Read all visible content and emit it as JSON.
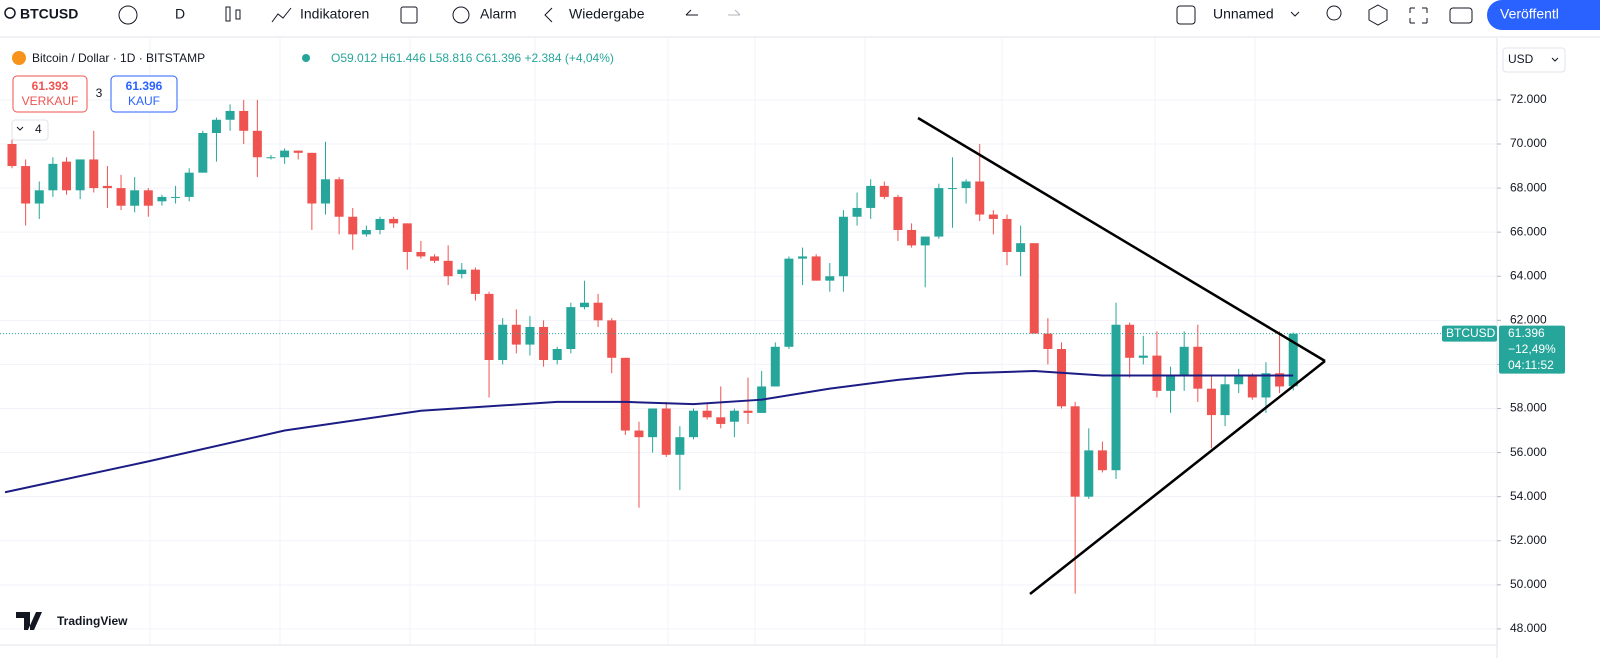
{
  "toolbar": {
    "symbol": "BTCUSD",
    "interval": "D",
    "indicators": "Indikatoren",
    "alert": "Alarm",
    "replay": "Wiedergabe",
    "layout": "Unnamed",
    "publish": "Veröffentl"
  },
  "legend": {
    "title": "Bitcoin / Dollar · 1D · BITSTAMP",
    "ohlc": "O59.012 H61.446 L58.816 C61.396 +2.384 (+4,04%)",
    "sell_price": "61.393",
    "sell": "VERKAUF",
    "spread": "3",
    "buy_price": "61.396",
    "buy": "KAUF",
    "indicator_count": "4"
  },
  "price_axis": {
    "currency": "USD",
    "symbol": "BTCUSD",
    "last": "61.396",
    "change": "−12,49%",
    "countdown": "04:11:52"
  },
  "brand": "TradingView",
  "chart_data": {
    "type": "candlestick",
    "up_color": "#26a69a",
    "down_color": "#ef5350",
    "candles": [
      [
        70.0,
        70.2,
        68.9,
        69.0
      ],
      [
        69.0,
        69.3,
        66.3,
        67.3
      ],
      [
        67.3,
        68.3,
        66.6,
        67.9
      ],
      [
        67.9,
        69.4,
        67.6,
        69.1
      ],
      [
        69.2,
        69.4,
        67.7,
        67.9
      ],
      [
        67.9,
        69.3,
        67.5,
        69.3
      ],
      [
        69.3,
        70.6,
        67.8,
        68.0
      ],
      [
        68.1,
        69.0,
        67.1,
        68.0
      ],
      [
        68.0,
        68.6,
        67.0,
        67.2
      ],
      [
        67.2,
        68.5,
        66.9,
        67.9
      ],
      [
        67.9,
        68.0,
        66.7,
        67.2
      ],
      [
        67.4,
        67.7,
        67.2,
        67.6
      ],
      [
        67.6,
        68.1,
        67.3,
        67.6
      ],
      [
        67.6,
        68.9,
        67.4,
        68.7
      ],
      [
        68.7,
        70.6,
        68.7,
        70.5
      ],
      [
        70.5,
        71.2,
        69.2,
        71.1
      ],
      [
        71.1,
        71.8,
        70.6,
        71.5
      ],
      [
        71.5,
        72.0,
        70.0,
        70.6
      ],
      [
        70.6,
        72.0,
        68.5,
        69.4
      ],
      [
        69.4,
        69.5,
        69.3,
        69.4
      ],
      [
        69.4,
        69.8,
        69.1,
        69.7
      ],
      [
        69.7,
        69.7,
        69.3,
        69.6
      ],
      [
        69.6,
        69.6,
        66.1,
        67.3
      ],
      [
        67.3,
        70.1,
        66.8,
        68.4
      ],
      [
        68.4,
        68.5,
        65.9,
        66.7
      ],
      [
        66.7,
        67.1,
        65.2,
        65.9
      ],
      [
        65.9,
        66.3,
        65.8,
        66.1
      ],
      [
        66.1,
        66.7,
        65.9,
        66.6
      ],
      [
        66.6,
        66.7,
        66.2,
        66.4
      ],
      [
        66.4,
        66.4,
        64.3,
        65.1
      ],
      [
        65.1,
        65.6,
        64.8,
        64.9
      ],
      [
        64.9,
        65.0,
        64.6,
        64.7
      ],
      [
        64.7,
        65.4,
        63.6,
        64.0
      ],
      [
        64.1,
        64.6,
        63.9,
        64.3
      ],
      [
        64.3,
        64.4,
        62.9,
        63.2
      ],
      [
        63.2,
        63.3,
        58.5,
        60.2
      ],
      [
        60.2,
        62.1,
        60.0,
        61.8
      ],
      [
        61.8,
        62.5,
        60.5,
        60.9
      ],
      [
        60.9,
        62.2,
        60.4,
        61.7
      ],
      [
        61.7,
        62.0,
        59.9,
        60.2
      ],
      [
        60.2,
        60.8,
        60.0,
        60.7
      ],
      [
        60.7,
        62.8,
        60.5,
        62.6
      ],
      [
        62.6,
        63.8,
        62.5,
        62.8
      ],
      [
        62.8,
        63.2,
        61.7,
        62.0
      ],
      [
        62.0,
        62.1,
        59.6,
        60.3
      ],
      [
        60.3,
        60.3,
        56.8,
        57.0
      ],
      [
        57.0,
        57.4,
        53.5,
        56.7
      ],
      [
        56.7,
        58.0,
        56.0,
        58.0
      ],
      [
        58.0,
        58.3,
        55.8,
        55.9
      ],
      [
        55.9,
        57.2,
        54.3,
        56.7
      ],
      [
        56.7,
        58.0,
        56.6,
        57.9
      ],
      [
        57.9,
        58.2,
        57.5,
        57.6
      ],
      [
        57.6,
        59.0,
        57.1,
        57.3
      ],
      [
        57.4,
        58.0,
        56.7,
        57.9
      ],
      [
        57.9,
        59.4,
        57.3,
        57.8
      ],
      [
        57.8,
        59.7,
        57.8,
        59.0
      ],
      [
        59.0,
        61.0,
        59.0,
        60.8
      ],
      [
        60.8,
        64.9,
        60.7,
        64.8
      ],
      [
        64.8,
        65.3,
        63.6,
        64.9
      ],
      [
        64.9,
        65.0,
        63.8,
        63.8
      ],
      [
        63.8,
        64.6,
        63.3,
        64.0
      ],
      [
        64.0,
        67.0,
        63.3,
        66.7
      ],
      [
        66.7,
        67.8,
        66.3,
        67.1
      ],
      [
        67.1,
        68.4,
        66.6,
        68.1
      ],
      [
        68.1,
        68.3,
        67.5,
        67.6
      ],
      [
        67.6,
        67.7,
        65.6,
        66.1
      ],
      [
        66.1,
        66.4,
        65.3,
        65.4
      ],
      [
        65.4,
        65.8,
        63.5,
        65.8
      ],
      [
        65.8,
        68.2,
        65.7,
        68.0
      ],
      [
        68.0,
        69.4,
        66.2,
        68.0
      ],
      [
        68.0,
        68.4,
        67.3,
        68.3
      ],
      [
        68.3,
        70.0,
        66.5,
        66.8
      ],
      [
        66.8,
        67.0,
        65.9,
        66.6
      ],
      [
        66.6,
        66.8,
        64.5,
        65.1
      ],
      [
        65.1,
        66.3,
        64.0,
        65.5
      ],
      [
        65.5,
        65.5,
        61.4,
        61.4
      ],
      [
        61.4,
        62.1,
        60.0,
        60.7
      ],
      [
        60.7,
        61.0,
        58.0,
        58.1
      ],
      [
        58.1,
        58.3,
        49.6,
        54.0
      ],
      [
        54.0,
        57.1,
        53.9,
        56.1
      ],
      [
        56.1,
        56.5,
        55.1,
        55.2
      ],
      [
        55.2,
        62.8,
        54.8,
        61.8
      ],
      [
        61.8,
        61.9,
        59.4,
        60.3
      ],
      [
        60.3,
        61.3,
        60.0,
        60.4
      ],
      [
        60.4,
        61.5,
        58.5,
        58.8
      ],
      [
        58.8,
        59.9,
        57.8,
        59.5
      ],
      [
        59.5,
        61.5,
        58.8,
        60.8
      ],
      [
        60.8,
        61.8,
        58.3,
        58.9
      ],
      [
        58.9,
        59.5,
        56.2,
        57.7
      ],
      [
        57.7,
        59.5,
        57.2,
        59.1
      ],
      [
        59.1,
        59.8,
        58.7,
        59.5
      ],
      [
        59.5,
        59.6,
        58.4,
        58.5
      ],
      [
        58.5,
        60.1,
        57.8,
        59.6
      ],
      [
        59.6,
        61.5,
        58.7,
        59.0
      ],
      [
        59.012,
        61.446,
        58.816,
        61.396
      ]
    ],
    "ma": {
      "color": "#1c1c85",
      "x": [
        0,
        10,
        20,
        30,
        40,
        45,
        50,
        55,
        60,
        65,
        70,
        75,
        80,
        85,
        90,
        94
      ],
      "values": [
        54.2,
        55.6,
        57.0,
        57.9,
        58.3,
        58.3,
        58.2,
        58.4,
        58.9,
        59.3,
        59.6,
        59.7,
        59.5,
        59.5,
        59.5,
        59.5
      ]
    },
    "ylim": [
      47.27,
      74.81
    ],
    "yticks": [
      {
        "value": 72,
        "label": "72.000"
      },
      {
        "value": 70,
        "label": "70.000"
      },
      {
        "value": 68,
        "label": "68.000"
      },
      {
        "value": 66,
        "label": "66.000"
      },
      {
        "value": 64,
        "label": "64.000"
      },
      {
        "value": 62,
        "label": "62.000"
      },
      {
        "value": 60,
        "label": "60.000"
      },
      {
        "value": 58,
        "label": "58.000"
      },
      {
        "value": 56,
        "label": "56.000"
      },
      {
        "value": 54,
        "label": "54.000"
      },
      {
        "value": 52,
        "label": "52.000"
      },
      {
        "value": 50,
        "label": "50.000"
      },
      {
        "value": 48,
        "label": "48.000"
      }
    ],
    "grid": true
  }
}
